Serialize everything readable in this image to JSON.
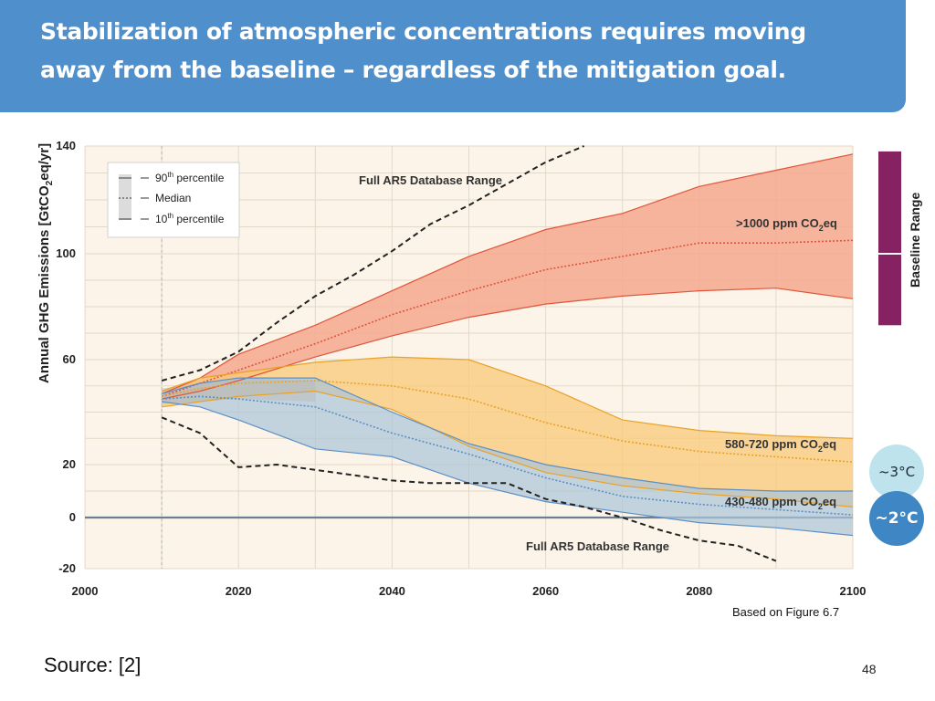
{
  "slide": {
    "title_line1": "Stabilization of atmospheric concentrations requires moving",
    "title_line2": "away from the baseline – regardless of the mitigation goal.",
    "figure_note": "Based on Figure 6.7",
    "source": "Source:  [2]",
    "page_number": "48",
    "temp_3": "~3°C",
    "temp_2": "~2°C"
  },
  "colors": {
    "banner": "#4f8fcb",
    "plot_bg": "#fcf4e8",
    "grid": "#e3d9c8",
    "high_fill": "#f4a88f",
    "high_line": "#e0553a",
    "mid_fill": "#f9c978",
    "mid_line": "#e9a128",
    "low_fill": "#a9c4d8",
    "low_line": "#5b8fc8",
    "baseline_bar": "#862262",
    "hist_band": "#b9b9b9"
  },
  "chart_data": {
    "type": "area",
    "ylabel": "Annual GHG Emissions [GtCO",
    "ylabel_sub": "2",
    "ylabel_tail": "eq/yr]",
    "xlim": [
      2000,
      2100
    ],
    "ylim": [
      -20,
      140
    ],
    "x_ticks": [
      2000,
      2020,
      2040,
      2060,
      2080,
      2100
    ],
    "y_ticks": [
      -20,
      0,
      20,
      60,
      100,
      140
    ],
    "x_tick_labels": [
      "2000",
      "2020",
      "2040",
      "2060",
      "2080",
      "2100"
    ],
    "y_tick_labels": [
      "-20",
      "0",
      "20",
      "60",
      "100",
      "140"
    ],
    "legend": {
      "p90": "90",
      "p90_sup": "th",
      "p90_tail": " percentile",
      "median": "Median",
      "p10": "10",
      "p10_sup": "th",
      "p10_tail": " percentile"
    },
    "range_label_top": "Full AR5 Database Range",
    "range_label_bottom": "Full AR5 Database Range",
    "baseline_range_label": "Baseline Range",
    "baseline_range": {
      "min": 73,
      "max": 138,
      "median": 100
    },
    "series": [
      {
        "name": ">1000 ppm CO2eq",
        "label_main": ">1000 ppm CO",
        "label_sub": "2",
        "label_tail": "eq",
        "x": [
          2010,
          2015,
          2020,
          2030,
          2040,
          2050,
          2060,
          2070,
          2080,
          2090,
          2100
        ],
        "p90": [
          47,
          53,
          62,
          73,
          86,
          99,
          109,
          115,
          125,
          131,
          137
        ],
        "median": [
          46,
          51,
          56,
          66,
          77,
          86,
          94,
          99,
          104,
          104,
          105
        ],
        "p10": [
          45,
          48,
          52,
          61,
          69,
          76,
          81,
          84,
          86,
          87,
          83
        ]
      },
      {
        "name": "580-720 ppm CO2eq",
        "label_main": "580-720 ppm CO",
        "label_sub": "2",
        "label_tail": "eq",
        "x": [
          2010,
          2015,
          2020,
          2030,
          2040,
          2050,
          2060,
          2070,
          2080,
          2090,
          2100
        ],
        "p90": [
          48,
          53,
          55,
          59,
          61,
          60,
          50,
          37,
          33,
          31,
          30
        ],
        "median": [
          46,
          49,
          51,
          52,
          50,
          45,
          36,
          29,
          25,
          23,
          21
        ],
        "p10": [
          42,
          44,
          46,
          48,
          41,
          27,
          17,
          12,
          9,
          7,
          4
        ]
      },
      {
        "name": "430-480 ppm CO2eq",
        "label_main": "430-480 ppm CO",
        "label_sub": "2",
        "label_tail": "eq",
        "x": [
          2010,
          2015,
          2020,
          2030,
          2040,
          2050,
          2060,
          2070,
          2080,
          2090,
          2100
        ],
        "p90": [
          47,
          51,
          53,
          53,
          40,
          28,
          20,
          15,
          11,
          10,
          10
        ],
        "median": [
          45,
          46,
          45,
          42,
          32,
          24,
          15,
          8,
          5,
          3,
          1
        ],
        "p10": [
          44,
          42,
          37,
          26,
          23,
          13,
          6,
          2,
          -2,
          -4,
          -7
        ]
      }
    ],
    "historic_band": {
      "x": [
        2010,
        2020,
        2030
      ],
      "upper": [
        49,
        53,
        52
      ],
      "lower": [
        43,
        45,
        44
      ]
    },
    "full_range_upper": {
      "x": [
        2010,
        2015,
        2020,
        2025,
        2030,
        2035,
        2040,
        2045,
        2050,
        2055,
        2060,
        2065
      ],
      "y": [
        52,
        56,
        63,
        74,
        84,
        92,
        101,
        111,
        118,
        126,
        134,
        140
      ]
    },
    "full_range_lower": {
      "x": [
        2010,
        2015,
        2020,
        2025,
        2030,
        2035,
        2040,
        2045,
        2050,
        2055,
        2060,
        2065,
        2070,
        2075,
        2080,
        2085,
        2090
      ],
      "y": [
        38,
        32,
        19,
        20,
        18,
        16,
        14,
        13,
        13,
        13,
        7,
        4,
        0,
        -5,
        -9,
        -11,
        -17
      ]
    }
  }
}
